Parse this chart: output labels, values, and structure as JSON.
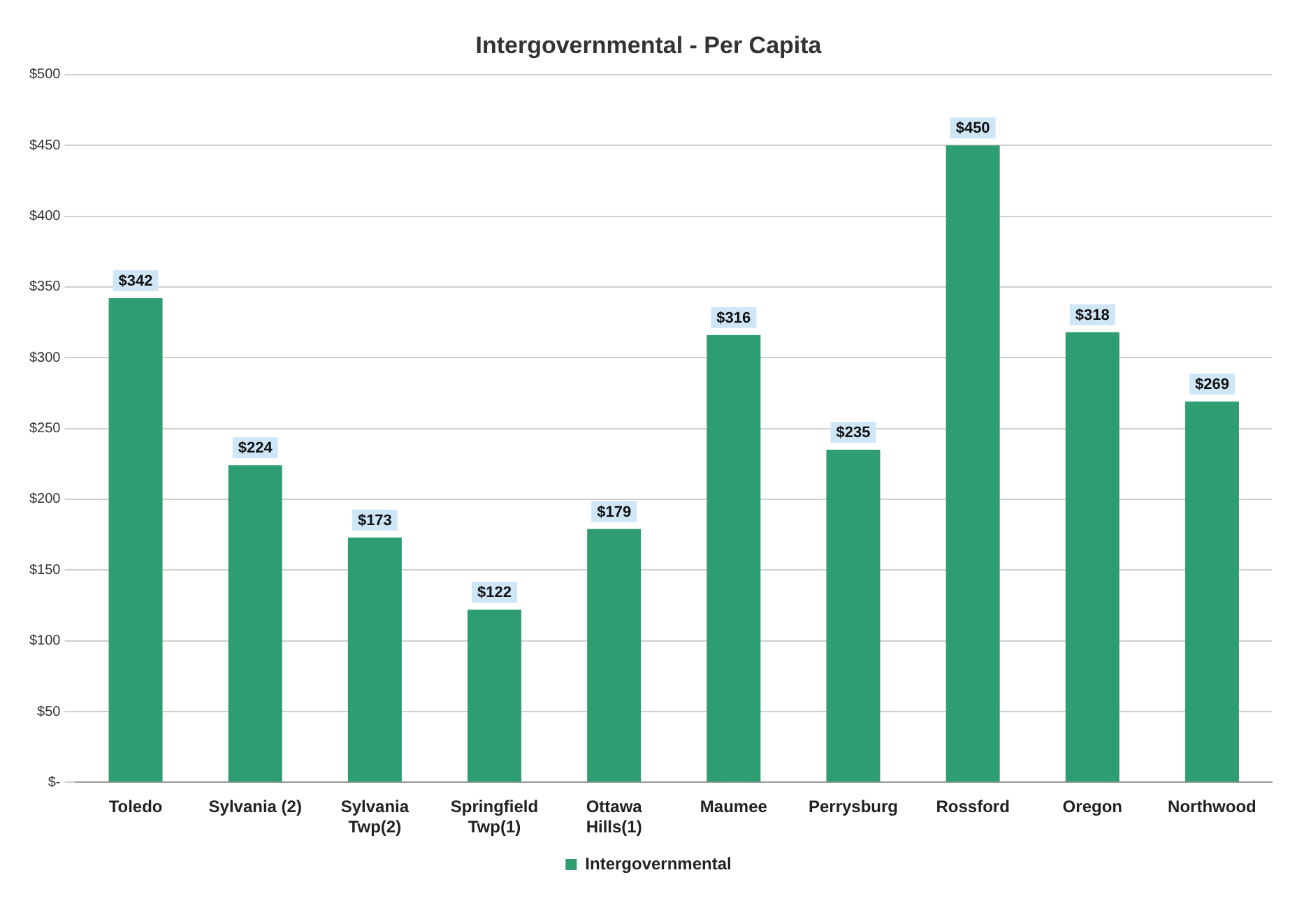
{
  "chart_data": {
    "type": "bar",
    "title": "Intergovernmental - Per Capita",
    "categories": [
      "Toledo",
      "Sylvania (2)",
      "Sylvania Twp(2)",
      "Springfield Twp(1)",
      "Ottawa Hills(1)",
      "Maumee",
      "Perrysburg",
      "Rossford",
      "Oregon",
      "Northwood"
    ],
    "series": [
      {
        "name": "Intergovernmental",
        "color": "#2e9e72",
        "values": [
          342,
          224,
          173,
          122,
          179,
          316,
          235,
          450,
          318,
          269
        ],
        "value_labels": [
          "$342",
          "$224",
          "$173",
          "$122",
          "$179",
          "$316",
          "$235",
          "$450",
          "$318",
          "$269"
        ]
      }
    ],
    "ylim": [
      0,
      500
    ],
    "yticks": [
      {
        "value": 0,
        "label": "$-"
      },
      {
        "value": 50,
        "label": "$50"
      },
      {
        "value": 100,
        "label": "$100"
      },
      {
        "value": 150,
        "label": "$150"
      },
      {
        "value": 200,
        "label": "$200"
      },
      {
        "value": 250,
        "label": "$250"
      },
      {
        "value": 300,
        "label": "$300"
      },
      {
        "value": 350,
        "label": "$350"
      },
      {
        "value": 400,
        "label": "$400"
      },
      {
        "value": 450,
        "label": "$450"
      },
      {
        "value": 500,
        "label": "$500"
      }
    ],
    "grid": "y",
    "legend": "bottom"
  }
}
